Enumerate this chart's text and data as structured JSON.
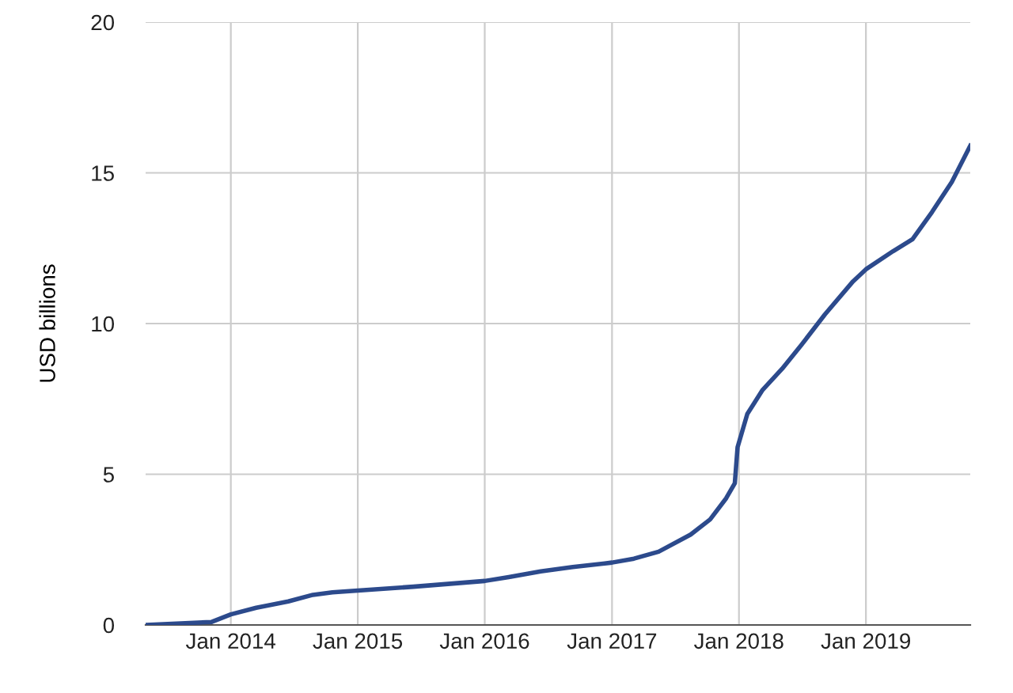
{
  "chart_data": {
    "type": "line",
    "ylabel": "USD billions",
    "x": [
      "2013-05-01",
      "2013-11-07",
      "2014-01-01",
      "2014-03-15",
      "2014-06-15",
      "2014-08-25",
      "2014-10-20",
      "2015-01-01",
      "2015-06-10",
      "2016-01-01",
      "2016-03-10",
      "2016-06-10",
      "2016-09-10",
      "2017-01-01",
      "2017-03-05",
      "2017-05-15",
      "2017-08-15",
      "2017-10-10",
      "2017-11-25",
      "2017-12-20",
      "2017-12-28",
      "2018-01-25",
      "2018-03-10",
      "2018-05-05",
      "2018-06-30",
      "2018-09-05",
      "2018-11-25",
      "2019-01-01",
      "2019-03-20",
      "2019-05-15",
      "2019-07-10",
      "2019-09-05",
      "2019-10-28"
    ],
    "series": [
      {
        "color": "#2c4a8c",
        "values": [
          0,
          0.1,
          0.35,
          0.57,
          0.78,
          1.0,
          1.08,
          1.14,
          1.27,
          1.46,
          1.59,
          1.78,
          1.92,
          2.07,
          2.2,
          2.43,
          3.0,
          3.5,
          4.2,
          4.7,
          5.9,
          7.0,
          7.8,
          8.5,
          9.3,
          10.3,
          11.4,
          11.8,
          12.4,
          12.8,
          13.7,
          14.7,
          15.9
        ]
      }
    ],
    "xlim": [
      "2013-05-01",
      "2019-10-28"
    ],
    "xticks": [
      {
        "value": "2014-01-01",
        "label": "Jan 2014"
      },
      {
        "value": "2015-01-01",
        "label": "Jan 2015"
      },
      {
        "value": "2016-01-01",
        "label": "Jan 2016"
      },
      {
        "value": "2017-01-01",
        "label": "Jan 2017"
      },
      {
        "value": "2018-01-01",
        "label": "Jan 2018"
      },
      {
        "value": "2019-01-01",
        "label": "Jan 2019"
      }
    ],
    "ylim": [
      0,
      20
    ],
    "yticks": [
      0,
      5,
      10,
      15,
      20
    ],
    "grid": true,
    "marker": "none",
    "line_style": "solid"
  }
}
